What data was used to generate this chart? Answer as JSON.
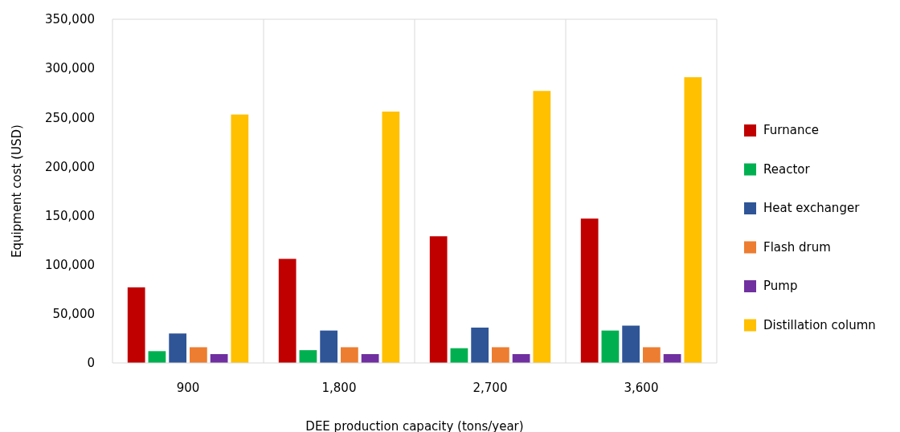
{
  "chart_data": {
    "type": "bar",
    "xlabel": "DEE production capacity (tons/year)",
    "ylabel": "Equipment cost (USD)",
    "categories": [
      "900",
      "1,800",
      "2,700",
      "3,600"
    ],
    "series": [
      {
        "name": "Furnance",
        "color": "#c00000",
        "values": [
          77000,
          106000,
          129000,
          147000
        ]
      },
      {
        "name": "Reactor",
        "color": "#00b050",
        "values": [
          12000,
          13000,
          15000,
          33000
        ]
      },
      {
        "name": "Heat exchanger",
        "color": "#2f5597",
        "values": [
          30000,
          33000,
          36000,
          38000
        ]
      },
      {
        "name": "Flash drum",
        "color": "#ed7d31",
        "values": [
          16000,
          16000,
          16000,
          16000
        ]
      },
      {
        "name": "Pump",
        "color": "#7030a0",
        "values": [
          9000,
          9000,
          9000,
          9000
        ]
      },
      {
        "name": "Distillation column",
        "color": "#ffc000",
        "values": [
          253000,
          256000,
          277000,
          291000
        ]
      }
    ],
    "ylim": [
      0,
      350000
    ],
    "yticks": [
      {
        "value": 0,
        "label": "0"
      },
      {
        "value": 50000,
        "label": "50,000"
      },
      {
        "value": 100000,
        "label": "100,000"
      },
      {
        "value": 150000,
        "label": "150,000"
      },
      {
        "value": 200000,
        "label": "200,000"
      },
      {
        "value": 250000,
        "label": "250,000"
      },
      {
        "value": 300000,
        "label": "300,000"
      },
      {
        "value": 350000,
        "label": "350,000"
      }
    ],
    "grid": "x",
    "legend": "right"
  }
}
